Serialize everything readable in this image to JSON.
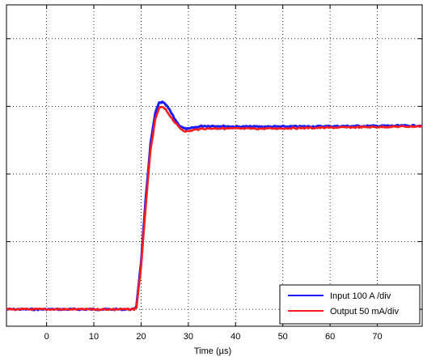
{
  "chart_data": {
    "type": "line",
    "xlabel": "Time (µs)",
    "ylabel": "",
    "xlim": [
      -8.5,
      79.5
    ],
    "ylim": [
      -3.5,
      6
    ],
    "xticks": [
      0,
      10,
      20,
      30,
      40,
      50,
      60,
      70
    ],
    "yticks": [
      -3,
      -1,
      1,
      3,
      5
    ],
    "grid": true,
    "legend_position": "bottom-right",
    "series": [
      {
        "name": "Input 100 A /div",
        "color": "#1c1cff",
        "x": [
          -8.5,
          18.5,
          19.0,
          20.0,
          21.0,
          22.0,
          23.0,
          23.8,
          24.5,
          25.2,
          26.0,
          27.0,
          28.0,
          29.0,
          30.0,
          31.0,
          33.0,
          36.0,
          40.0,
          45.0,
          50.0,
          60.0,
          70.0,
          79.5
        ],
        "y": [
          -3.0,
          -3.0,
          -2.9,
          -1.6,
          0.3,
          1.9,
          2.8,
          3.1,
          3.12,
          3.05,
          2.9,
          2.65,
          2.45,
          2.35,
          2.33,
          2.37,
          2.42,
          2.42,
          2.4,
          2.4,
          2.4,
          2.41,
          2.42,
          2.43
        ]
      },
      {
        "name": "Output 50 mA/div",
        "color": "#ff1c1c",
        "x": [
          -8.5,
          18.5,
          19.0,
          20.0,
          21.0,
          22.0,
          23.0,
          23.8,
          24.5,
          25.2,
          26.0,
          27.0,
          28.0,
          29.0,
          30.0,
          31.0,
          33.0,
          36.0,
          40.0,
          45.0,
          50.0,
          60.0,
          70.0,
          79.5
        ],
        "y": [
          -3.0,
          -3.0,
          -2.95,
          -1.75,
          0.1,
          1.7,
          2.6,
          2.95,
          2.98,
          2.9,
          2.75,
          2.55,
          2.38,
          2.28,
          2.26,
          2.3,
          2.34,
          2.35,
          2.34,
          2.34,
          2.35,
          2.37,
          2.39,
          2.41
        ]
      }
    ]
  }
}
